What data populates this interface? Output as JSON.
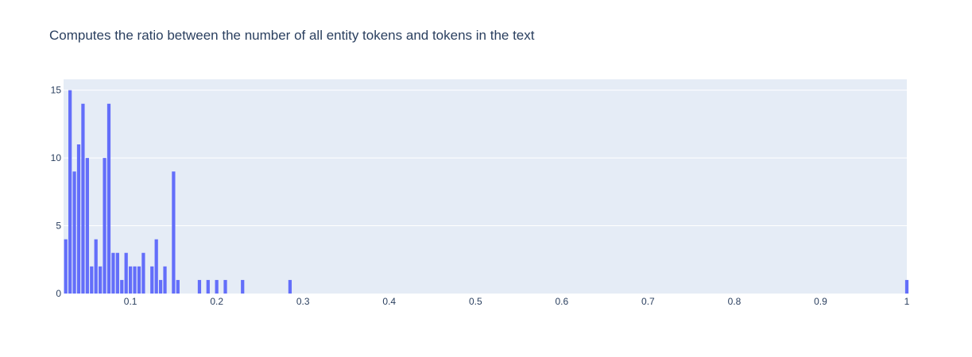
{
  "chart_data": {
    "type": "bar",
    "title": "Computes the ratio between the number of all entity tokens and tokens in the text",
    "xlabel": "",
    "ylabel": "",
    "xlim": [
      0.0225,
      1.0
    ],
    "ylim": [
      0,
      15.8
    ],
    "bin_width": 0.005,
    "x_ticks": [
      {
        "value": 0.1,
        "label": "0.1"
      },
      {
        "value": 0.2,
        "label": "0.2"
      },
      {
        "value": 0.3,
        "label": "0.3"
      },
      {
        "value": 0.4,
        "label": "0.4"
      },
      {
        "value": 0.5,
        "label": "0.5"
      },
      {
        "value": 0.6,
        "label": "0.6"
      },
      {
        "value": 0.7,
        "label": "0.7"
      },
      {
        "value": 0.8,
        "label": "0.8"
      },
      {
        "value": 0.9,
        "label": "0.9"
      },
      {
        "value": 1.0,
        "label": "1"
      }
    ],
    "y_ticks": [
      {
        "value": 0,
        "label": "0"
      },
      {
        "value": 5,
        "label": "5"
      },
      {
        "value": 10,
        "label": "10"
      },
      {
        "value": 15,
        "label": "15"
      }
    ],
    "grid": true,
    "colors": {
      "bar": "#636efa",
      "plot_bg": "#e5ecf6",
      "grid": "#ffffff",
      "text": "#2a3f5f"
    },
    "x": [
      0.025,
      0.03,
      0.035,
      0.04,
      0.045,
      0.05,
      0.055,
      0.06,
      0.065,
      0.07,
      0.075,
      0.08,
      0.085,
      0.09,
      0.095,
      0.1,
      0.105,
      0.11,
      0.115,
      0.125,
      0.13,
      0.135,
      0.14,
      0.15,
      0.155,
      0.18,
      0.19,
      0.2,
      0.21,
      0.23,
      0.285,
      1.0
    ],
    "values": [
      4,
      15,
      9,
      11,
      14,
      10,
      2,
      4,
      2,
      10,
      14,
      3,
      3,
      1,
      3,
      2,
      2,
      2,
      3,
      2,
      4,
      1,
      2,
      9,
      1,
      1,
      1,
      1,
      1,
      1,
      1,
      1
    ]
  }
}
